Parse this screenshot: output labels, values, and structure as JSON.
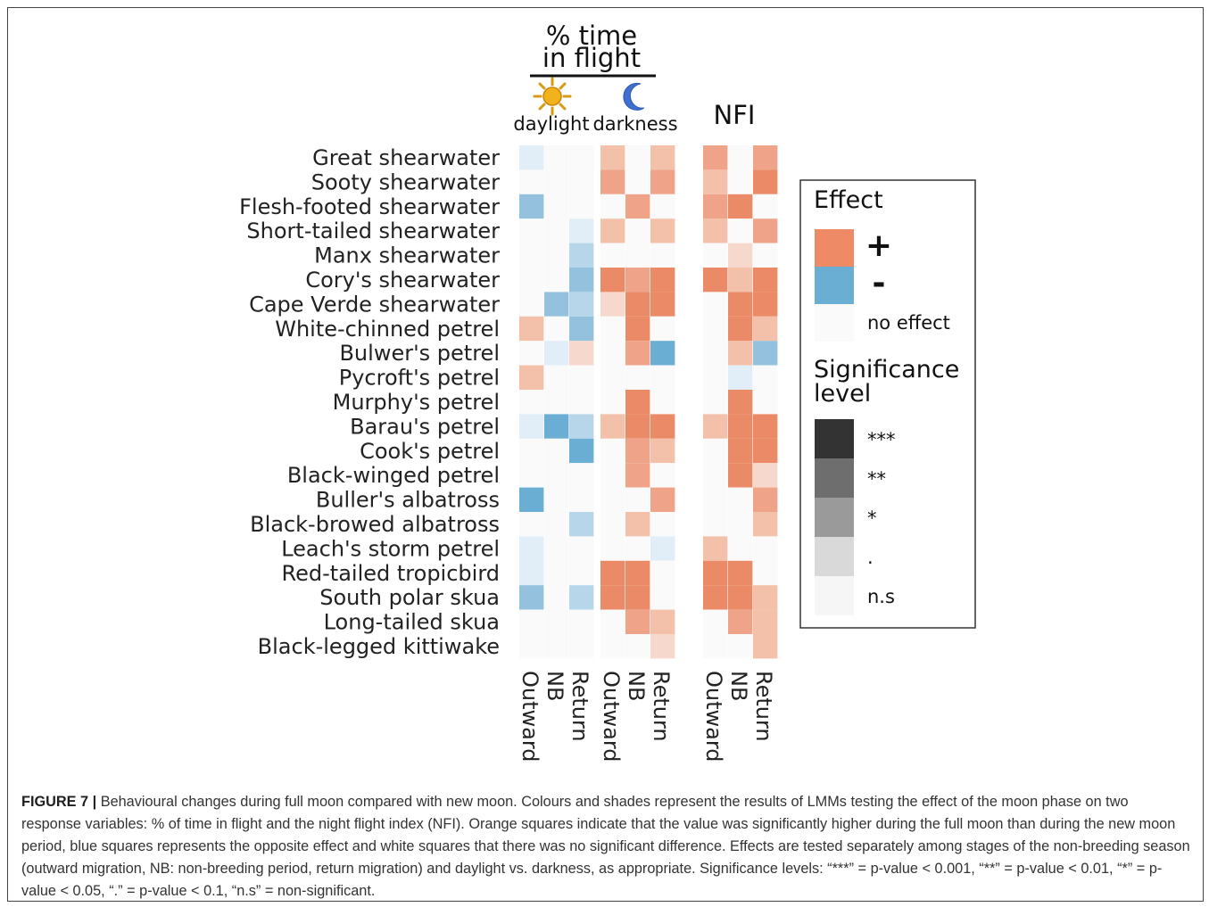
{
  "header": {
    "group1_line1": "% time",
    "group1_line2": "in flight",
    "daylight_label": "daylight",
    "darkness_label": "darkness",
    "group2_label": "NFI"
  },
  "legend": {
    "effect_title": "Effect",
    "effect_items": [
      {
        "symbol": "+",
        "color": "#ee8a65"
      },
      {
        "symbol": "-",
        "color": "#6aaed4"
      },
      {
        "symbol": "no effect",
        "color": "#fafafa"
      }
    ],
    "significance_title_line1": "Significance",
    "significance_title_line2": "level",
    "significance_items": [
      {
        "label": "***",
        "color": "#333333"
      },
      {
        "label": "**",
        "color": "#6e6e6e"
      },
      {
        "label": "*",
        "color": "#9a9a9a"
      },
      {
        "label": ".",
        "color": "#d9d9d9"
      },
      {
        "label": "n.s",
        "color": "#f6f6f6"
      }
    ]
  },
  "chart_data": {
    "type": "heatmap",
    "rows": [
      "Great shearwater",
      "Sooty shearwater",
      "Flesh-footed shearwater",
      "Short-tailed shearwater",
      "Manx shearwater",
      "Cory's shearwater",
      "Cape Verde shearwater",
      "White-chinned petrel",
      "Bulwer's petrel",
      "Pycroft's petrel",
      "Murphy's petrel",
      "Barau's petrel",
      "Cook's petrel",
      "Black-winged petrel",
      "Buller's albatross",
      "Black-browed albatross",
      "Leach's storm petrel",
      "Red-tailed tropicbird",
      "South polar skua",
      "Long-tailed skua",
      "Black-legged kittiwake"
    ],
    "columns": [
      "Outward",
      "NB",
      "Return",
      "Outward",
      "NB",
      "Return",
      "Outward",
      "NB",
      "Return"
    ],
    "column_groups": [
      "daylight",
      "daylight",
      "daylight",
      "darkness",
      "darkness",
      "darkness",
      "NFI",
      "NFI",
      "NFI"
    ],
    "encoding": "sign = direction of effect (+ orange, - blue, 0 no effect); magnitude = significance level (1 '.', 2 '*', 3 '**', 4 '***')",
    "values": [
      [
        -1,
        0,
        0,
        2,
        0,
        2,
        3,
        0,
        3
      ],
      [
        0,
        0,
        0,
        3,
        0,
        3,
        2,
        0,
        4
      ],
      [
        -3,
        0,
        0,
        0,
        3,
        0,
        3,
        4,
        0
      ],
      [
        0,
        0,
        -1,
        2,
        0,
        2,
        2,
        0,
        3
      ],
      [
        0,
        0,
        -2,
        0,
        0,
        0,
        0,
        1,
        0
      ],
      [
        0,
        0,
        -3,
        4,
        3,
        4,
        4,
        2,
        4
      ],
      [
        0,
        -3,
        -2,
        1,
        4,
        4,
        0,
        4,
        4
      ],
      [
        2,
        0,
        -3,
        0,
        4,
        0,
        0,
        4,
        2
      ],
      [
        0,
        -1,
        1,
        0,
        3,
        -4,
        0,
        2,
        -3
      ],
      [
        2,
        0,
        0,
        0,
        0,
        0,
        0,
        -1,
        0
      ],
      [
        0,
        0,
        0,
        0,
        4,
        0,
        0,
        4,
        0
      ],
      [
        -1,
        -4,
        -2,
        2,
        4,
        4,
        2,
        4,
        4
      ],
      [
        0,
        0,
        -4,
        0,
        3,
        2,
        0,
        4,
        4
      ],
      [
        0,
        0,
        0,
        0,
        3,
        0,
        0,
        4,
        1
      ],
      [
        -4,
        0,
        0,
        0,
        0,
        3,
        0,
        0,
        3
      ],
      [
        0,
        0,
        -2,
        0,
        2,
        0,
        0,
        0,
        2
      ],
      [
        -1,
        0,
        0,
        0,
        0,
        -1,
        2,
        0,
        0
      ],
      [
        -1,
        0,
        0,
        4,
        4,
        0,
        4,
        4,
        0
      ],
      [
        -3,
        0,
        -2,
        4,
        4,
        0,
        4,
        4,
        2
      ],
      [
        0,
        0,
        0,
        0,
        3,
        2,
        0,
        3,
        2
      ],
      [
        0,
        0,
        0,
        0,
        0,
        1,
        0,
        0,
        2
      ]
    ]
  },
  "caption": {
    "figure_label": "FIGURE 7 |",
    "text": "Behavioural changes during full moon compared with new moon. Colours and shades represent the results of LMMs testing the effect of the moon phase on two response variables: % of time in flight and the night flight index (NFI). Orange squares indicate that the value was significantly higher during the full moon than during the new moon period, blue squares represents the opposite effect and white squares that there was no significant difference. Effects are tested separately among stages of the non-breeding season (outward migration, NB: non-breeding period, return migration) and daylight vs. darkness, as appropriate. Significance levels: “***” = p-value < 0.001, “**” = p-value < 0.01, “*” = p-value < 0.05, “.” = p-value < 0.1, “n.s” = non-significant."
  }
}
